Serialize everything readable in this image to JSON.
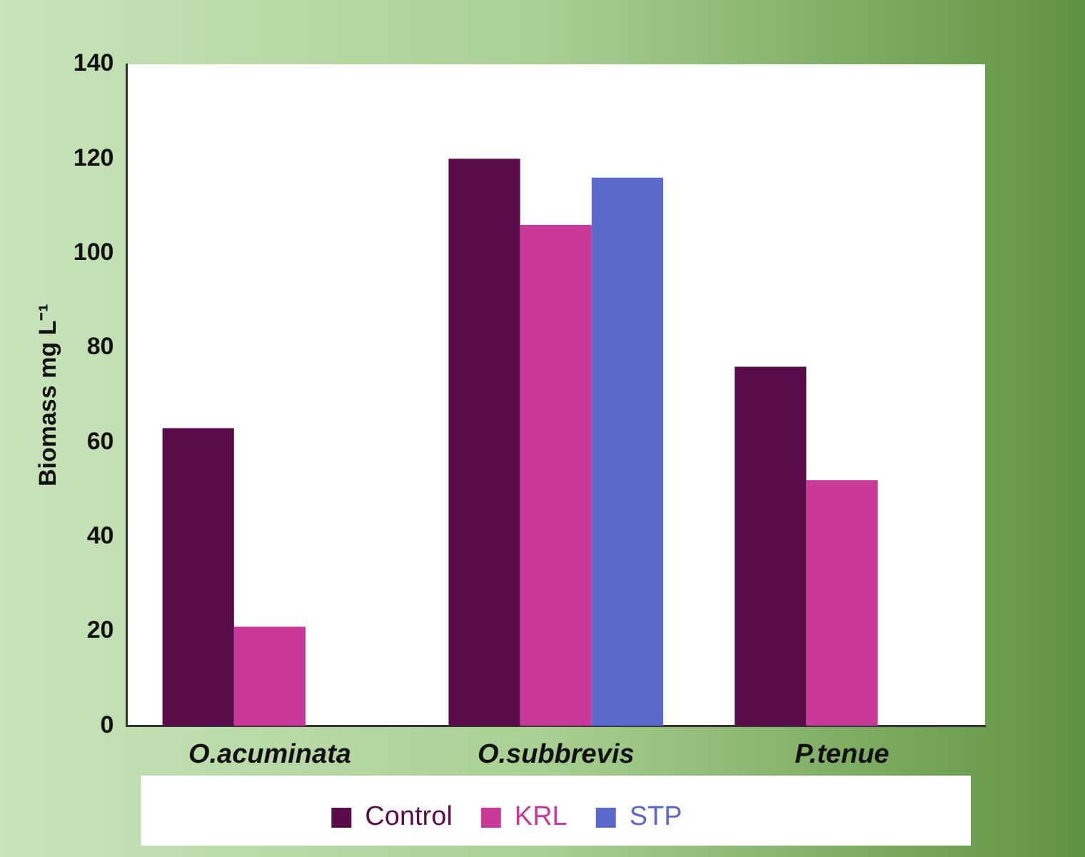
{
  "chart_data": {
    "type": "bar",
    "ylabel": "Biomass mg L⁻¹",
    "categories": [
      "O.acuminata",
      "O.subbrevis",
      "P.tenue"
    ],
    "series": [
      {
        "name": "Control",
        "color": "#5a0c4a",
        "values": [
          63,
          120,
          76
        ]
      },
      {
        "name": "KRL",
        "color": "#c8399a",
        "values": [
          21,
          106,
          52
        ]
      },
      {
        "name": "STP",
        "color": "#5b68cc",
        "values": [
          null,
          116,
          null
        ]
      }
    ],
    "ylim": [
      0,
      140
    ],
    "yticks": [
      0,
      20,
      40,
      60,
      80,
      100,
      120,
      140
    ],
    "grid": false,
    "legend": "bottom"
  }
}
